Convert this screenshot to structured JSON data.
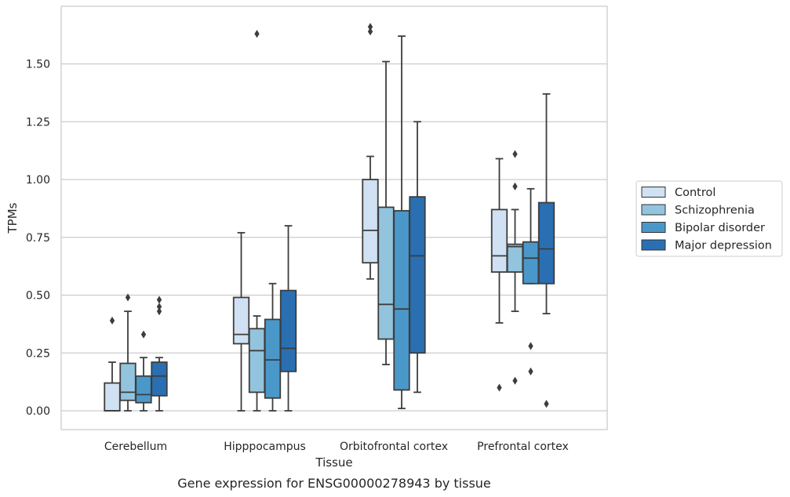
{
  "chart_data": {
    "type": "box",
    "title": "",
    "caption": "Gene expression for ENSG00000278943 by tissue",
    "xlabel": "Tissue",
    "ylabel": "TPMs",
    "ylim": [
      -0.08,
      1.75
    ],
    "yticks": [
      0.0,
      0.25,
      0.5,
      0.75,
      1.0,
      1.25,
      1.5
    ],
    "ytick_labels": [
      "0.00",
      "0.25",
      "0.50",
      "0.75",
      "1.00",
      "1.25",
      "1.50"
    ],
    "grid": "horizontal",
    "legend_position": "right",
    "categories": [
      "Cerebellum",
      "Hipppocampus",
      "Orbitofrontal cortex",
      "Prefrontal cortex"
    ],
    "series": [
      {
        "name": "Control",
        "color": "#cfe1f2",
        "boxes": [
          {
            "whisker_low": 0.0,
            "q1": 0.0,
            "median": 0.0,
            "q3": 0.12,
            "whisker_high": 0.21,
            "outliers": [
              0.39
            ]
          },
          {
            "whisker_low": 0.0,
            "q1": 0.29,
            "median": 0.33,
            "q3": 0.49,
            "whisker_high": 0.77,
            "outliers": []
          },
          {
            "whisker_low": 0.57,
            "q1": 0.64,
            "median": 0.78,
            "q3": 1.0,
            "whisker_high": 1.1,
            "outliers": [
              1.64,
              1.66
            ]
          },
          {
            "whisker_low": 0.38,
            "q1": 0.6,
            "median": 0.67,
            "q3": 0.87,
            "whisker_high": 1.09,
            "outliers": [
              0.1
            ]
          }
        ]
      },
      {
        "name": "Schizophrenia",
        "color": "#93c4de",
        "boxes": [
          {
            "whisker_low": 0.0,
            "q1": 0.045,
            "median": 0.08,
            "q3": 0.205,
            "whisker_high": 0.43,
            "outliers": [
              0.49
            ]
          },
          {
            "whisker_low": 0.0,
            "q1": 0.08,
            "median": 0.26,
            "q3": 0.355,
            "whisker_high": 0.41,
            "outliers": [
              1.63
            ]
          },
          {
            "whisker_low": 0.2,
            "q1": 0.31,
            "median": 0.46,
            "q3": 0.88,
            "whisker_high": 1.51,
            "outliers": []
          },
          {
            "whisker_low": 0.43,
            "q1": 0.6,
            "median": 0.71,
            "q3": 0.72,
            "whisker_high": 0.87,
            "outliers": [
              0.13,
              0.97,
              1.11
            ]
          }
        ]
      },
      {
        "name": "Bipolar disorder",
        "color": "#4a98c9",
        "boxes": [
          {
            "whisker_low": 0.0,
            "q1": 0.035,
            "median": 0.07,
            "q3": 0.15,
            "whisker_high": 0.23,
            "outliers": [
              0.33
            ]
          },
          {
            "whisker_low": 0.0,
            "q1": 0.055,
            "median": 0.22,
            "q3": 0.395,
            "whisker_high": 0.55,
            "outliers": []
          },
          {
            "whisker_low": 0.01,
            "q1": 0.09,
            "median": 0.44,
            "q3": 0.865,
            "whisker_high": 1.62,
            "outliers": []
          },
          {
            "whisker_low": 0.55,
            "q1": 0.55,
            "median": 0.66,
            "q3": 0.73,
            "whisker_high": 0.96,
            "outliers": [
              0.17,
              0.28
            ]
          }
        ]
      },
      {
        "name": "Major depression",
        "color": "#2a6fb2",
        "boxes": [
          {
            "whisker_low": 0.0,
            "q1": 0.065,
            "median": 0.15,
            "q3": 0.21,
            "whisker_high": 0.23,
            "outliers": [
              0.43,
              0.45,
              0.48
            ]
          },
          {
            "whisker_low": 0.0,
            "q1": 0.17,
            "median": 0.27,
            "q3": 0.52,
            "whisker_high": 0.8,
            "outliers": []
          },
          {
            "whisker_low": 0.08,
            "q1": 0.25,
            "median": 0.67,
            "q3": 0.925,
            "whisker_high": 1.25,
            "outliers": []
          },
          {
            "whisker_low": 0.42,
            "q1": 0.55,
            "median": 0.7,
            "q3": 0.9,
            "whisker_high": 1.37,
            "outliers": [
              0.03
            ]
          }
        ]
      }
    ]
  }
}
